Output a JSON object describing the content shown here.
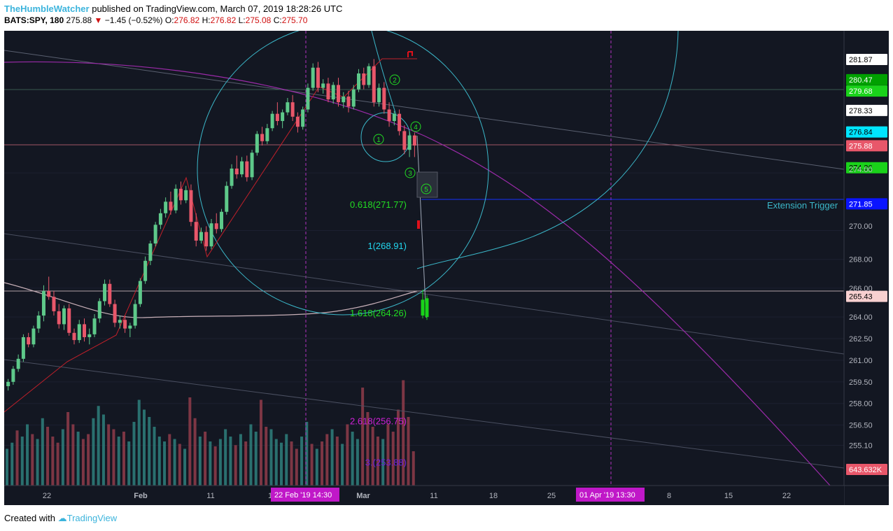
{
  "header": {
    "author": "TheHumbleWatcher",
    "published_text": "published on TradingView.com, March 07, 2019 18:28:26 UTC",
    "symbol": "BATS:SPY, 180",
    "last": "275.88",
    "change_arrow": "▼",
    "change": "−1.45 (−0.52%)",
    "o_label": "O:",
    "o": "276.82",
    "h_label": "H:",
    "h": "276.82",
    "l_label": "L:",
    "l": "275.08",
    "c_label": "C:",
    "c": "275.70"
  },
  "footer": {
    "created_with": "Created with",
    "brand": "TradingView"
  },
  "colors": {
    "background": "#131722",
    "up": "#5ec98a",
    "down": "#e8576a",
    "accent_cyan": "#3bb7c9",
    "magenta": "#c018c8",
    "price_axis_bg": "#131722"
  },
  "chart_data": {
    "type": "candlestick",
    "y_axis": {
      "ticks": [
        "281.87",
        "280.47",
        "279.68",
        "278.33",
        "276.84",
        "275.88",
        "274.36",
        "274.00",
        "271.85",
        "270.00",
        "268.00",
        "266.00",
        "265.43",
        "264.00",
        "262.50",
        "261.00",
        "259.50",
        "258.00",
        "256.50",
        "255.10",
        "643.632K"
      ]
    },
    "x_axis": {
      "ticks": [
        "22",
        "Feb",
        "11",
        "1",
        "Mar",
        "11",
        "18",
        "25",
        "8",
        "15",
        "22"
      ],
      "highlights": [
        "22 Feb '19   14:30",
        "01 Apr '19   13:30"
      ]
    },
    "price_labels": [
      {
        "text": "281.87",
        "bg": "#ffffff",
        "fg": "#000000"
      },
      {
        "text": "280.47",
        "bg": "#00a000",
        "fg": "#ffffff"
      },
      {
        "text": "279.68",
        "bg": "#1ad21a",
        "fg": "#ffffff"
      },
      {
        "text": "278.33",
        "bg": "#ffffff",
        "fg": "#000000"
      },
      {
        "text": "276.84",
        "bg": "#00e5ff",
        "fg": "#000000"
      },
      {
        "text": "275.88",
        "bg": "#e8576a",
        "fg": "#ffffff"
      },
      {
        "text": "274.36",
        "bg": "#1ad21a",
        "fg": "#000000"
      },
      {
        "text": "271.85",
        "bg": "#0a14ff",
        "fg": "#ffffff"
      },
      {
        "text": "265.43",
        "bg": "#f8d0d0",
        "fg": "#000000"
      },
      {
        "text": "643.632K",
        "bg": "#e8576a",
        "fg": "#ffffff"
      }
    ],
    "fib_levels": [
      {
        "label": "0.618(271.77)",
        "value": 271.77,
        "color": "#22dd22"
      },
      {
        "label": "1(268.91)",
        "value": 268.91,
        "color": "#22d8f0"
      },
      {
        "label": "1.618(264.26)",
        "value": 264.26,
        "color": "#22dd22"
      },
      {
        "label": "2.618(256.75)",
        "value": 256.75,
        "color": "#d020d8"
      },
      {
        "label": "3.(253.88)",
        "value": 253.88,
        "color": "#7020d8"
      }
    ],
    "annotations": {
      "extension_trigger": "Extension Trigger",
      "waves": [
        "1",
        "2",
        "3",
        "4",
        "5"
      ]
    },
    "candles": [
      [
        259.2,
        259.7,
        258.9,
        259.5
      ],
      [
        259.5,
        260.6,
        259.3,
        260.4
      ],
      [
        260.4,
        261.4,
        260.2,
        261.1
      ],
      [
        261.1,
        262.8,
        260.9,
        262.6
      ],
      [
        262.6,
        262.9,
        261.9,
        262.1
      ],
      [
        262.1,
        263.4,
        261.9,
        263.2
      ],
      [
        263.2,
        264.4,
        262.9,
        264.1
      ],
      [
        264.1,
        266.2,
        263.7,
        265.8
      ],
      [
        265.8,
        266.8,
        265.2,
        265.4
      ],
      [
        265.4,
        265.8,
        264.1,
        264.4
      ],
      [
        264.4,
        264.9,
        263.2,
        263.5
      ],
      [
        263.5,
        264.8,
        263.1,
        264.6
      ],
      [
        264.6,
        264.9,
        262.7,
        262.9
      ],
      [
        262.9,
        263.2,
        262.1,
        262.4
      ],
      [
        262.4,
        263.8,
        262.2,
        263.5
      ],
      [
        263.5,
        263.9,
        262.3,
        262.6
      ],
      [
        262.6,
        263.2,
        262.1,
        262.8
      ],
      [
        262.8,
        264.2,
        262.6,
        263.9
      ],
      [
        263.9,
        265.3,
        263.6,
        265.1
      ],
      [
        265.1,
        266.6,
        264.8,
        266.3
      ],
      [
        266.3,
        266.6,
        264.7,
        264.9
      ],
      [
        264.9,
        265.2,
        263.3,
        263.6
      ],
      [
        263.6,
        264.1,
        263.2,
        263.8
      ],
      [
        263.8,
        264.1,
        262.9,
        263.2
      ],
      [
        263.2,
        263.6,
        262.6,
        263.4
      ],
      [
        263.4,
        265.2,
        263.2,
        264.9
      ],
      [
        264.9,
        266.7,
        264.7,
        266.5
      ],
      [
        266.5,
        268.2,
        266.3,
        267.9
      ],
      [
        267.9,
        269.3,
        267.6,
        269.1
      ],
      [
        269.1,
        270.6,
        268.9,
        270.4
      ],
      [
        270.4,
        271.5,
        270.1,
        271.2
      ],
      [
        271.2,
        272.3,
        270.9,
        272.0
      ],
      [
        272.0,
        272.7,
        271.1,
        271.4
      ],
      [
        271.4,
        273.2,
        271.2,
        272.9
      ],
      [
        272.9,
        273.4,
        271.8,
        272.1
      ],
      [
        272.1,
        273.1,
        271.9,
        272.8
      ],
      [
        272.8,
        273.2,
        270.3,
        270.6
      ],
      [
        270.6,
        271.2,
        268.9,
        269.3
      ],
      [
        269.3,
        270.2,
        269.1,
        269.9
      ],
      [
        269.9,
        270.3,
        268.6,
        268.9
      ],
      [
        268.9,
        270.8,
        268.7,
        270.5
      ],
      [
        270.5,
        271.2,
        269.8,
        270.1
      ],
      [
        270.1,
        271.5,
        269.9,
        271.3
      ],
      [
        271.3,
        273.4,
        271.1,
        273.1
      ],
      [
        273.1,
        274.6,
        272.9,
        274.3
      ],
      [
        274.3,
        275.2,
        273.6,
        273.9
      ],
      [
        273.9,
        275.1,
        273.7,
        274.8
      ],
      [
        274.8,
        275.2,
        273.4,
        273.7
      ],
      [
        273.7,
        275.6,
        273.5,
        275.4
      ],
      [
        275.4,
        276.9,
        275.2,
        276.7
      ],
      [
        276.7,
        277.2,
        275.9,
        276.2
      ],
      [
        276.2,
        277.4,
        276.0,
        277.1
      ],
      [
        277.1,
        278.3,
        276.9,
        278.1
      ],
      [
        278.1,
        278.9,
        277.3,
        277.6
      ],
      [
        277.6,
        278.4,
        277.1,
        278.2
      ],
      [
        278.2,
        279.2,
        278.0,
        278.9
      ],
      [
        278.9,
        279.4,
        277.6,
        277.9
      ],
      [
        277.9,
        278.2,
        276.8,
        277.2
      ],
      [
        277.2,
        278.6,
        277.0,
        278.4
      ],
      [
        278.4,
        280.2,
        278.2,
        279.9
      ],
      [
        279.9,
        281.6,
        279.7,
        281.3
      ],
      [
        281.3,
        281.7,
        279.6,
        279.9
      ],
      [
        279.9,
        280.5,
        279.5,
        280.2
      ],
      [
        280.2,
        280.6,
        278.9,
        279.1
      ],
      [
        279.1,
        280.3,
        278.8,
        280.1
      ],
      [
        280.1,
        280.6,
        278.6,
        278.9
      ],
      [
        278.9,
        279.6,
        278.5,
        279.3
      ],
      [
        279.3,
        279.7,
        278.2,
        278.6
      ],
      [
        278.6,
        280.1,
        278.4,
        279.8
      ],
      [
        279.8,
        281.2,
        279.6,
        280.9
      ],
      [
        280.9,
        281.3,
        279.8,
        280.1
      ],
      [
        280.1,
        281.6,
        279.9,
        281.4
      ],
      [
        281.4,
        281.9,
        278.6,
        278.9
      ],
      [
        278.9,
        280.2,
        278.6,
        279.9
      ],
      [
        279.9,
        280.3,
        278.1,
        278.4
      ],
      [
        278.4,
        278.9,
        277.2,
        277.6
      ],
      [
        277.6,
        278.3,
        277.3,
        278.1
      ],
      [
        278.1,
        278.4,
        276.6,
        276.9
      ],
      [
        276.9,
        277.3,
        275.3,
        275.6
      ],
      [
        275.6,
        276.9,
        275.1,
        276.6
      ],
      [
        276.6,
        276.8,
        275.1,
        275.9
      ]
    ],
    "projection_candles": [
      [
        265.2,
        265.9,
        263.9,
        264.1
      ],
      [
        264.0,
        265.5,
        263.8,
        265.3
      ]
    ],
    "volume": [
      [
        0.3,
        "g"
      ],
      [
        0.35,
        "g"
      ],
      [
        0.45,
        "r"
      ],
      [
        0.4,
        "g"
      ],
      [
        0.5,
        "g"
      ],
      [
        0.42,
        "r"
      ],
      [
        0.38,
        "g"
      ],
      [
        0.55,
        "g"
      ],
      [
        0.48,
        "r"
      ],
      [
        0.4,
        "r"
      ],
      [
        0.35,
        "r"
      ],
      [
        0.46,
        "g"
      ],
      [
        0.6,
        "r"
      ],
      [
        0.5,
        "r"
      ],
      [
        0.44,
        "g"
      ],
      [
        0.38,
        "r"
      ],
      [
        0.42,
        "r"
      ],
      [
        0.55,
        "g"
      ],
      [
        0.65,
        "g"
      ],
      [
        0.58,
        "g"
      ],
      [
        0.5,
        "r"
      ],
      [
        0.46,
        "r"
      ],
      [
        0.4,
        "g"
      ],
      [
        0.44,
        "r"
      ],
      [
        0.36,
        "g"
      ],
      [
        0.52,
        "g"
      ],
      [
        0.7,
        "g"
      ],
      [
        0.62,
        "g"
      ],
      [
        0.56,
        "g"
      ],
      [
        0.48,
        "g"
      ],
      [
        0.4,
        "g"
      ],
      [
        0.36,
        "g"
      ],
      [
        0.42,
        "r"
      ],
      [
        0.38,
        "g"
      ],
      [
        0.34,
        "r"
      ],
      [
        0.3,
        "g"
      ],
      [
        0.72,
        "r"
      ],
      [
        0.55,
        "r"
      ],
      [
        0.4,
        "g"
      ],
      [
        0.44,
        "r"
      ],
      [
        0.36,
        "g"
      ],
      [
        0.32,
        "r"
      ],
      [
        0.38,
        "g"
      ],
      [
        0.46,
        "g"
      ],
      [
        0.4,
        "g"
      ],
      [
        0.33,
        "r"
      ],
      [
        0.42,
        "g"
      ],
      [
        0.36,
        "r"
      ],
      [
        0.5,
        "g"
      ],
      [
        0.44,
        "g"
      ],
      [
        0.7,
        "r"
      ],
      [
        0.48,
        "r"
      ],
      [
        0.46,
        "g"
      ],
      [
        0.38,
        "g"
      ],
      [
        0.35,
        "g"
      ],
      [
        0.42,
        "g"
      ],
      [
        0.36,
        "r"
      ],
      [
        0.3,
        "r"
      ],
      [
        0.4,
        "g"
      ],
      [
        0.52,
        "g"
      ],
      [
        0.34,
        "r"
      ],
      [
        0.3,
        "g"
      ],
      [
        0.36,
        "r"
      ],
      [
        0.42,
        "r"
      ],
      [
        0.46,
        "g"
      ],
      [
        0.4,
        "r"
      ],
      [
        0.34,
        "g"
      ],
      [
        0.5,
        "r"
      ],
      [
        0.44,
        "g"
      ],
      [
        0.38,
        "g"
      ],
      [
        0.8,
        "r"
      ],
      [
        0.6,
        "r"
      ],
      [
        0.48,
        "r"
      ],
      [
        0.4,
        "r"
      ],
      [
        0.38,
        "g"
      ],
      [
        0.5,
        "r"
      ],
      [
        0.44,
        "r"
      ],
      [
        0.62,
        "r"
      ],
      [
        0.86,
        "r"
      ],
      [
        0.56,
        "r"
      ],
      [
        0.28,
        "r"
      ]
    ]
  }
}
